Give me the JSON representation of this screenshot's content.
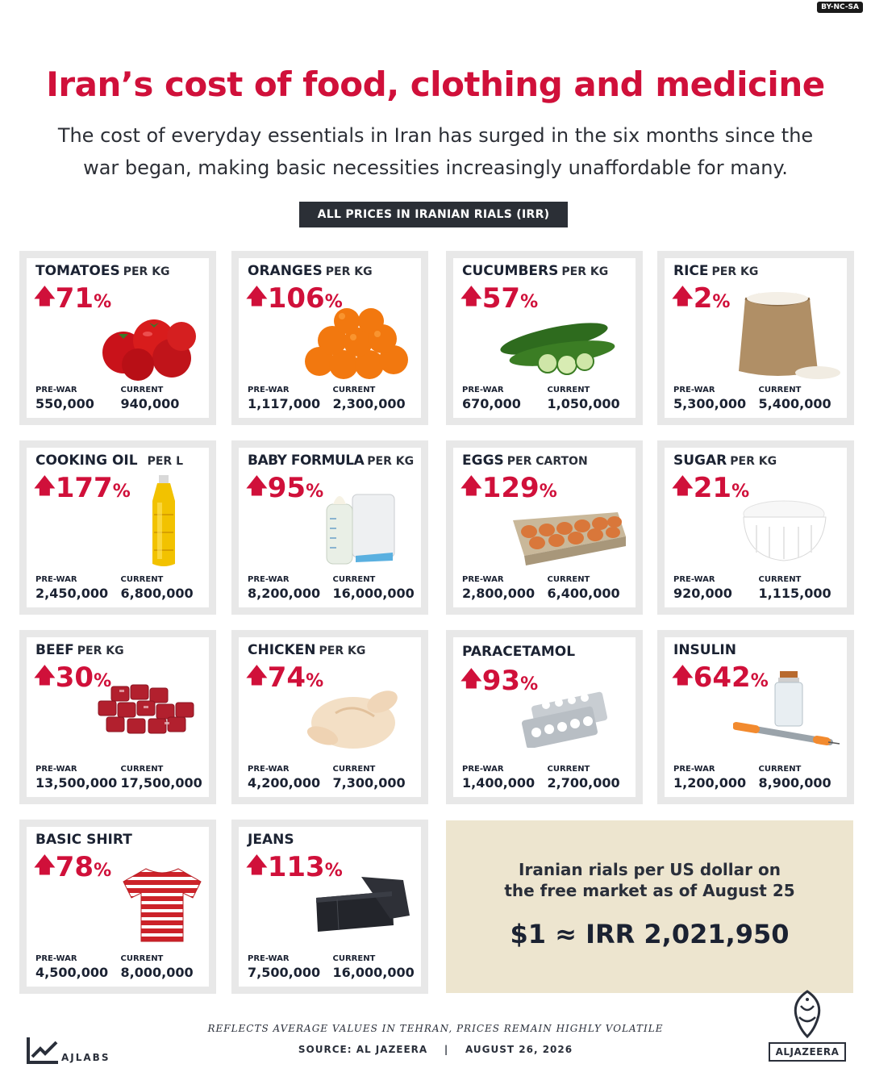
{
  "license": "BY-NC-SA",
  "title": "Iran’s cost of food, clothing and medicine",
  "subtitle_line1": "The cost of everyday essentials in Iran has surged in the six months since the",
  "subtitle_line2": "war began, making basic necessities increasingly unaffordable for many.",
  "prices_note": "ALL PRICES IN IRANIAN RIALS (IRR)",
  "labels": {
    "prewar": "PRE-WAR",
    "current": "CURRENT",
    "percent": "%"
  },
  "colors": {
    "accent_red": "#d0103a",
    "dark_navy": "#1b2232",
    "card_border": "#e8e8e8",
    "rate_box_bg": "#ede5cf"
  },
  "items": [
    {
      "name": "TOMATOES",
      "unit": "PER KG",
      "change": "71",
      "prewar": "550,000",
      "current": "940,000",
      "icon": "tomatoes-icon"
    },
    {
      "name": "ORANGES",
      "unit": "PER KG",
      "change": "106",
      "prewar": "1,117,000",
      "current": "2,300,000",
      "icon": "oranges-icon"
    },
    {
      "name": "CUCUMBERS",
      "unit": "PER KG",
      "change": "57",
      "prewar": "670,000",
      "current": "1,050,000",
      "icon": "cucumbers-icon"
    },
    {
      "name": "RICE",
      "unit": "PER KG",
      "change": "2",
      "prewar": "5,300,000",
      "current": "5,400,000",
      "icon": "rice-sack-icon"
    },
    {
      "name": "COOKING OIL",
      "unit": "PER L",
      "change": "177",
      "prewar": "2,450,000",
      "current": "6,800,000",
      "icon": "oil-bottle-icon"
    },
    {
      "name": "BABY FORMULA",
      "unit": "PER KG",
      "change": "95",
      "prewar": "8,200,000",
      "current": "16,000,000",
      "icon": "baby-formula-icon"
    },
    {
      "name": "EGGS",
      "unit": "PER CARTON",
      "change": "129",
      "prewar": "2,800,000",
      "current": "6,400,000",
      "icon": "egg-carton-icon"
    },
    {
      "name": "SUGAR",
      "unit": "PER KG",
      "change": "21",
      "prewar": "920,000",
      "current": "1,115,000",
      "icon": "sugar-bowl-icon"
    },
    {
      "name": "BEEF",
      "unit": "PER KG",
      "change": "30",
      "prewar": "13,500,000",
      "current": "17,500,000",
      "icon": "beef-cubes-icon"
    },
    {
      "name": "CHICKEN",
      "unit": "PER KG",
      "change": "74",
      "prewar": "4,200,000",
      "current": "7,300,000",
      "icon": "raw-chicken-icon"
    },
    {
      "name": "PARACETAMOL",
      "unit": "",
      "change": "93",
      "prewar": "1,400,000",
      "current": "2,700,000",
      "icon": "pill-blister-icon"
    },
    {
      "name": "INSULIN",
      "unit": "",
      "change": "642",
      "prewar": "1,200,000",
      "current": "8,900,000",
      "icon": "insulin-vial-syringe-icon"
    },
    {
      "name": "BASIC SHIRT",
      "unit": "",
      "change": "78",
      "prewar": "4,500,000",
      "current": "8,000,000",
      "icon": "striped-shirt-icon"
    },
    {
      "name": "JEANS",
      "unit": "",
      "change": "113",
      "prewar": "7,500,000",
      "current": "16,000,000",
      "icon": "folded-jeans-icon"
    }
  ],
  "exchange": {
    "line1": "Iranian rials per US dollar on",
    "line2": "the free market as of August 25",
    "value": "$1 ≈ IRR 2,021,950"
  },
  "footnote": "REFLECTS AVERAGE VALUES IN TEHRAN, PRICES REMAIN HIGHLY VOLATILE",
  "source": "SOURCE: AL JAZEERA    |    AUGUST 26, 2026",
  "ajlabs": "AJLABS",
  "aljazeera": "ALJAZEERA"
}
